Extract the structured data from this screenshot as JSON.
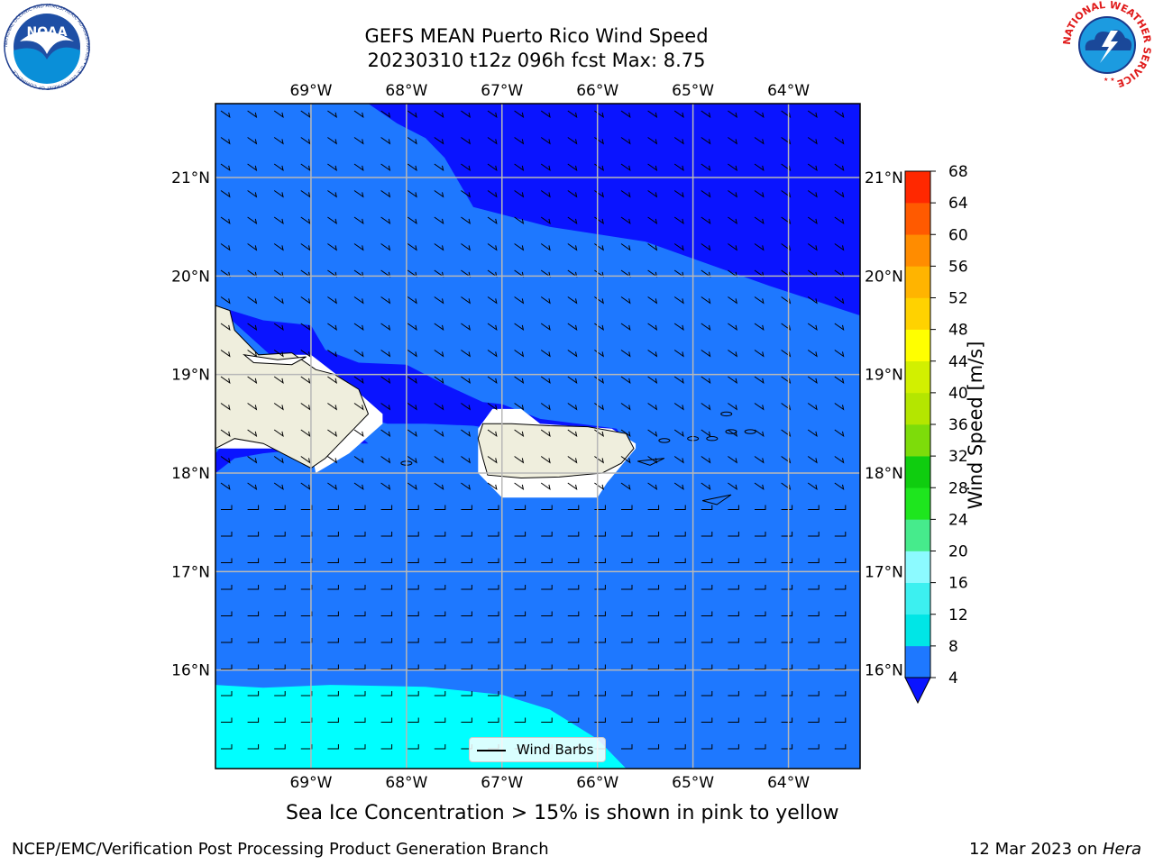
{
  "title_line1": "GEFS MEAN Puerto Rico Wind Speed",
  "title_line2": "20230310 t12z 096h fcst   Max: 8.75",
  "footer_left": "NCEP/EMC/Verification Post Processing Product Generation Branch",
  "footer_date": "12 Mar 2023 on ",
  "footer_host": "Hera",
  "note": "Sea Ice Concentration > 15% is shown in pink to yellow",
  "legend_label": "Wind Barbs",
  "colorbar": {
    "label": "Wind Speed [m/s]",
    "ticks": [
      "4",
      "8",
      "12",
      "16",
      "20",
      "24",
      "28",
      "32",
      "36",
      "40",
      "44",
      "48",
      "52",
      "56",
      "60",
      "64",
      "68"
    ],
    "colors": [
      "#1e78ff",
      "#00e6e6",
      "#3cf0f0",
      "#8cfaff",
      "#46eb8c",
      "#1ee61e",
      "#0fcd0f",
      "#7ddc0a",
      "#b4e600",
      "#d2f000",
      "#ffff00",
      "#ffd200",
      "#ffb400",
      "#ff8c00",
      "#ff5a00",
      "#ff2800"
    ],
    "under_color": "#0a14ff"
  },
  "map": {
    "lon_range": [
      -70,
      -63.25
    ],
    "lat_range": [
      15,
      21.75
    ],
    "lon_ticks": [
      "69°W",
      "68°W",
      "67°W",
      "66°W",
      "65°W",
      "64°W"
    ],
    "lat_ticks": [
      "21°N",
      "20°N",
      "19°N",
      "18°N",
      "17°N",
      "16°N"
    ],
    "lon_values": [
      -69,
      -68,
      -67,
      -66,
      -65,
      -64
    ],
    "lat_values": [
      21,
      20,
      19,
      18,
      17,
      16
    ],
    "ocean_color": "#1e78ff",
    "low_wind_color": "#0a14ff",
    "high_wind_color": "#00ffff",
    "land_color": "#efeedd"
  },
  "logos": {
    "noaa": "NOAA",
    "noaa_ring": "NATIONAL OCEANIC AND ATMOSPHERIC ADMINISTRATION • U.S. DEPARTMENT OF COMMERCE",
    "nws_ring": "NATIONAL WEATHER SERVICE"
  }
}
